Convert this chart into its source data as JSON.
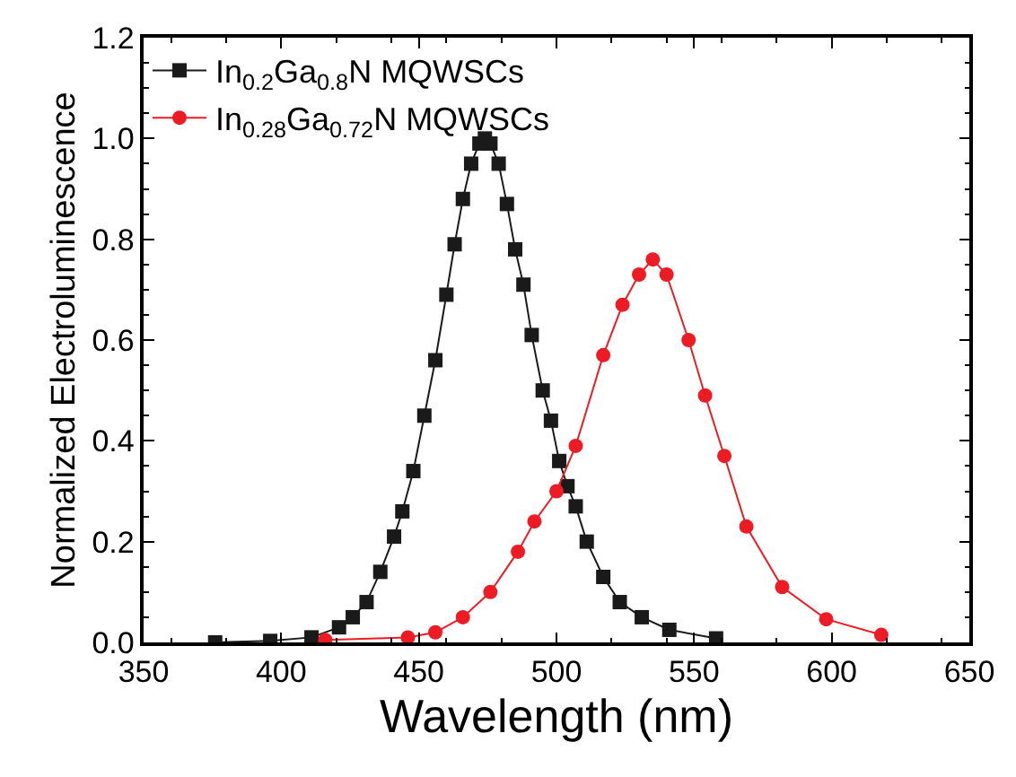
{
  "chart_data": {
    "type": "line",
    "xlabel": "Wavelength (nm)",
    "ylabel": "Normalized Electroluminescence",
    "xlim": [
      350,
      650
    ],
    "xticks": [
      350,
      400,
      450,
      500,
      550,
      600,
      650
    ],
    "ylim": [
      0,
      1.2
    ],
    "yticks": [
      {
        "value": 0,
        "label": "0.0"
      },
      0.2,
      0.4,
      0.6,
      0.8,
      {
        "value": 1,
        "label": "1.0"
      },
      1.2
    ],
    "legend": "top left",
    "series": [
      {
        "name": "In$_{0.2}$Ga$_{0.8}$N MQWSCs",
        "color": "#1a1a1a",
        "marker": "square",
        "x": [
          376,
          396,
          411,
          421,
          426,
          431,
          436,
          441,
          444,
          448,
          452,
          456,
          460,
          463,
          466,
          469,
          472,
          474,
          476,
          479,
          482,
          485,
          488,
          491,
          495,
          498,
          501,
          504,
          507,
          511,
          517,
          523,
          531,
          541,
          558
        ],
        "values": [
          0,
          0.003,
          0.01,
          0.03,
          0.05,
          0.08,
          0.14,
          0.21,
          0.26,
          0.34,
          0.45,
          0.56,
          0.69,
          0.79,
          0.88,
          0.95,
          0.99,
          1.0,
          0.99,
          0.95,
          0.87,
          0.78,
          0.71,
          0.61,
          0.5,
          0.44,
          0.36,
          0.31,
          0.27,
          0.2,
          0.13,
          0.08,
          0.05,
          0.025,
          0.008
        ]
      },
      {
        "name": "In$_{0.28}$Ga$_{0.72}$N MQWSCs",
        "color": "#ed1c24",
        "marker": "circle",
        "x": [
          416,
          446,
          456,
          466,
          476,
          486,
          492,
          500,
          507,
          517,
          524,
          530,
          535,
          540,
          548,
          554,
          561,
          569,
          582,
          598,
          618
        ],
        "values": [
          0.005,
          0.01,
          0.02,
          0.05,
          0.1,
          0.18,
          0.24,
          0.3,
          0.39,
          0.57,
          0.67,
          0.73,
          0.76,
          0.73,
          0.6,
          0.49,
          0.37,
          0.23,
          0.11,
          0.046,
          0.015
        ]
      }
    ]
  }
}
